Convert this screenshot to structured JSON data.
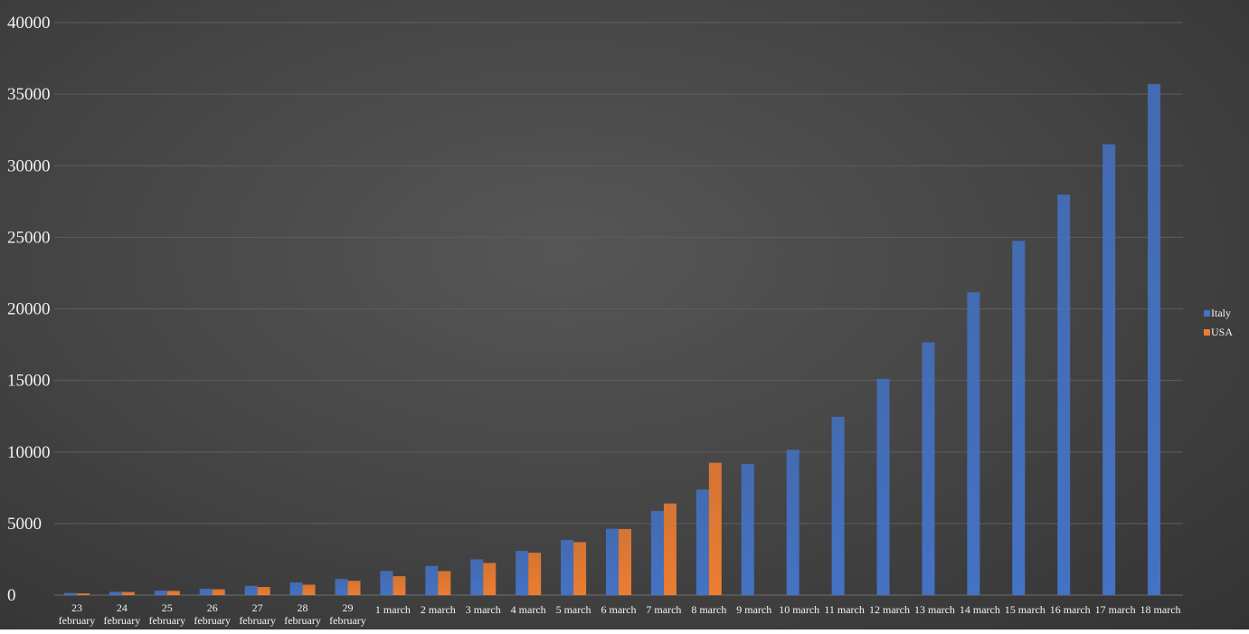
{
  "chart_data": {
    "type": "bar",
    "title": "",
    "xlabel": "",
    "ylabel": "",
    "ylim": [
      0,
      40000
    ],
    "yticks": [
      "0",
      "5000",
      "10000",
      "15000",
      "20000",
      "25000",
      "30000",
      "35000",
      "40000"
    ],
    "grid": true,
    "legend_position": "right",
    "categories": [
      "23 february",
      "24 february",
      "25 february",
      "26 february",
      "27 february",
      "28 february",
      "29 february",
      "1 march",
      "2 march",
      "3 march",
      "4 march",
      "5 march",
      "6 march",
      "7 march",
      "8 march",
      "9 march",
      "10 march",
      "11 march",
      "12 march",
      "13 march",
      "14 march",
      "15 march",
      "16 march",
      "17 march",
      "18 march"
    ],
    "series": [
      {
        "name": "Italy",
        "color": "#4472c4",
        "values": [
          150,
          230,
          320,
          450,
          650,
          890,
          1130,
          1690,
          2040,
          2500,
          3090,
          3860,
          4640,
          5880,
          7380,
          9170,
          10150,
          12460,
          15110,
          17660,
          21160,
          24750,
          27980,
          31500,
          35710
        ]
      },
      {
        "name": "USA",
        "color": "#ed7d31",
        "values": [
          120,
          220,
          300,
          410,
          570,
          730,
          1000,
          1320,
          1680,
          2250,
          2960,
          3700,
          4620,
          6400,
          9250,
          null,
          null,
          null,
          null,
          null,
          null,
          null,
          null,
          null,
          null
        ]
      }
    ]
  }
}
